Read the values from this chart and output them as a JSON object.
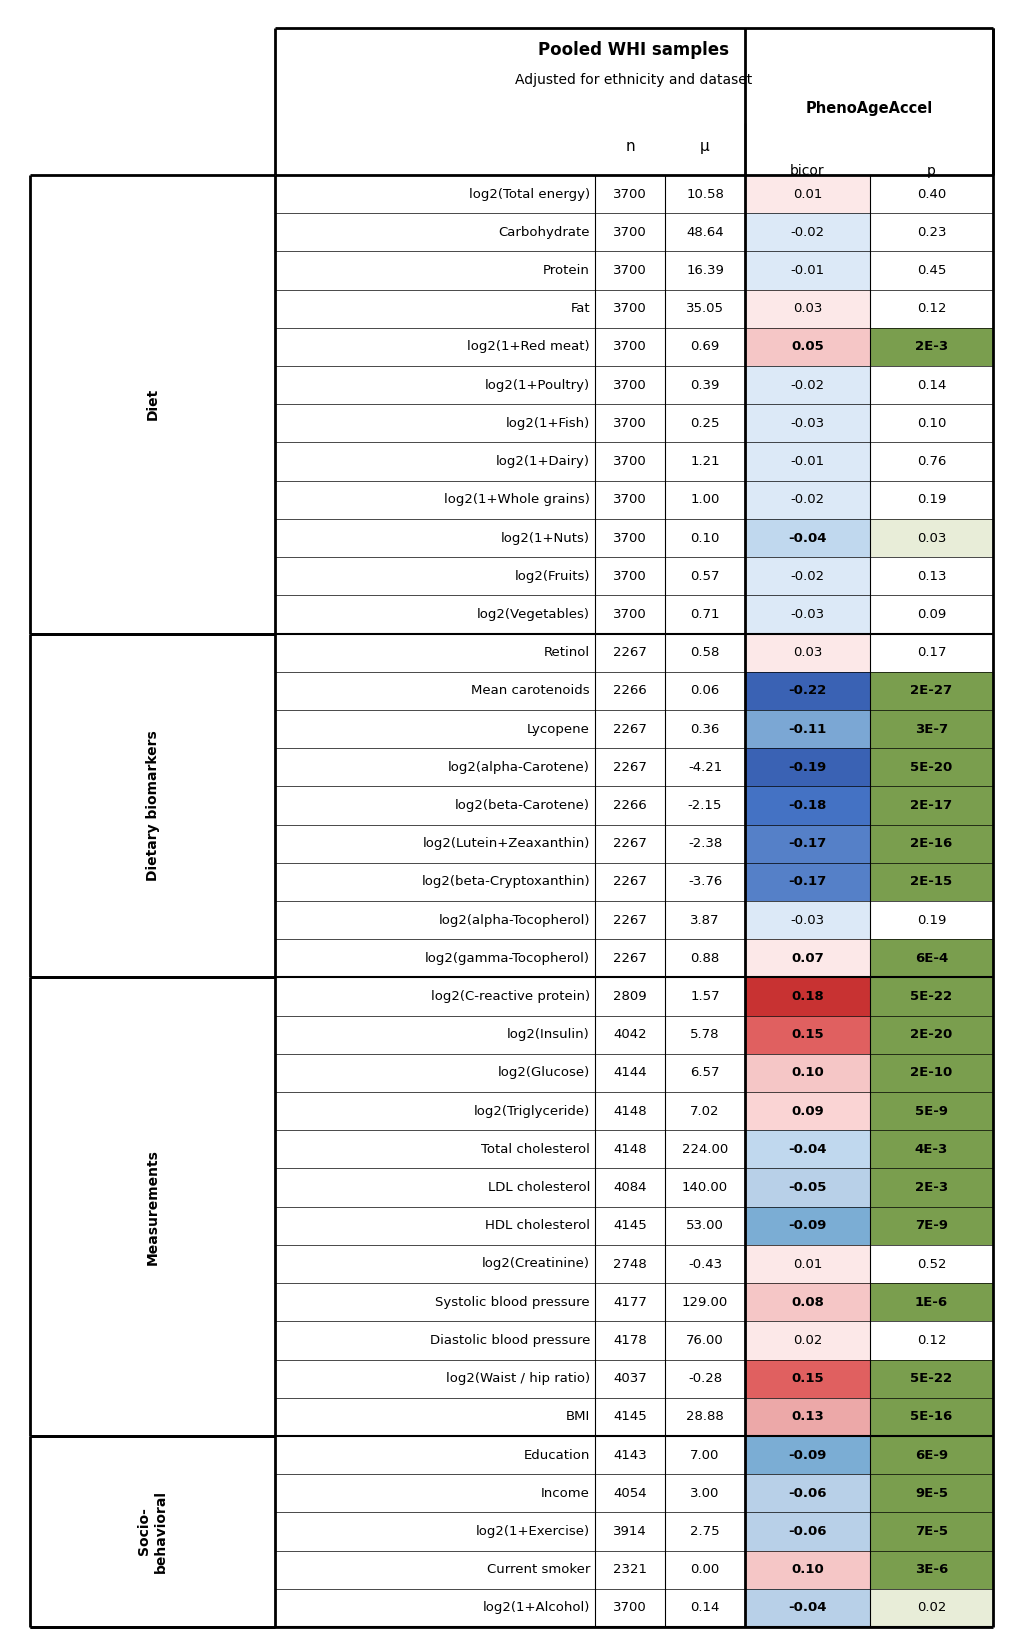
{
  "sections": [
    {
      "label": "Diet",
      "rows": [
        {
          "name": "log2(Total energy)",
          "n": "3700",
          "mu": "10.58",
          "bicor": "0.01",
          "p": "0.40",
          "bicor_color": "#fce8e8",
          "p_color": "#ffffff"
        },
        {
          "name": "Carbohydrate",
          "n": "3700",
          "mu": "48.64",
          "bicor": "-0.02",
          "p": "0.23",
          "bicor_color": "#dce9f7",
          "p_color": "#ffffff"
        },
        {
          "name": "Protein",
          "n": "3700",
          "mu": "16.39",
          "bicor": "-0.01",
          "p": "0.45",
          "bicor_color": "#dce9f7",
          "p_color": "#ffffff"
        },
        {
          "name": "Fat",
          "n": "3700",
          "mu": "35.05",
          "bicor": "0.03",
          "p": "0.12",
          "bicor_color": "#fce8e8",
          "p_color": "#ffffff"
        },
        {
          "name": "log2(1+Red meat)",
          "n": "3700",
          "mu": "0.69",
          "bicor": "0.05",
          "p": "2E-3",
          "bicor_color": "#f5c6c6",
          "p_color": "#7a9e4e"
        },
        {
          "name": "log2(1+Poultry)",
          "n": "3700",
          "mu": "0.39",
          "bicor": "-0.02",
          "p": "0.14",
          "bicor_color": "#dce9f7",
          "p_color": "#ffffff"
        },
        {
          "name": "log2(1+Fish)",
          "n": "3700",
          "mu": "0.25",
          "bicor": "-0.03",
          "p": "0.10",
          "bicor_color": "#dce9f7",
          "p_color": "#ffffff"
        },
        {
          "name": "log2(1+Dairy)",
          "n": "3700",
          "mu": "1.21",
          "bicor": "-0.01",
          "p": "0.76",
          "bicor_color": "#dce9f7",
          "p_color": "#ffffff"
        },
        {
          "name": "log2(1+Whole grains)",
          "n": "3700",
          "mu": "1.00",
          "bicor": "-0.02",
          "p": "0.19",
          "bicor_color": "#dce9f7",
          "p_color": "#ffffff"
        },
        {
          "name": "log2(1+Nuts)",
          "n": "3700",
          "mu": "0.10",
          "bicor": "-0.04",
          "p": "0.03",
          "bicor_color": "#c0d8ee",
          "p_color": "#e8edd8"
        },
        {
          "name": "log2(Fruits)",
          "n": "3700",
          "mu": "0.57",
          "bicor": "-0.02",
          "p": "0.13",
          "bicor_color": "#dce9f7",
          "p_color": "#ffffff"
        },
        {
          "name": "log2(Vegetables)",
          "n": "3700",
          "mu": "0.71",
          "bicor": "-0.03",
          "p": "0.09",
          "bicor_color": "#dce9f7",
          "p_color": "#ffffff"
        }
      ]
    },
    {
      "label": "Dietary biomarkers",
      "rows": [
        {
          "name": "Retinol",
          "n": "2267",
          "mu": "0.58",
          "bicor": "0.03",
          "p": "0.17",
          "bicor_color": "#fce8e8",
          "p_color": "#ffffff"
        },
        {
          "name": "Mean carotenoids",
          "n": "2266",
          "mu": "0.06",
          "bicor": "-0.22",
          "p": "2E-27",
          "bicor_color": "#3a62b4",
          "p_color": "#7a9e4e"
        },
        {
          "name": "Lycopene",
          "n": "2267",
          "mu": "0.36",
          "bicor": "-0.11",
          "p": "3E-7",
          "bicor_color": "#7ba7d4",
          "p_color": "#7a9e4e"
        },
        {
          "name": "log2(alpha-Carotene)",
          "n": "2267",
          "mu": "-4.21",
          "bicor": "-0.19",
          "p": "5E-20",
          "bicor_color": "#3a62b4",
          "p_color": "#7a9e4e"
        },
        {
          "name": "log2(beta-Carotene)",
          "n": "2266",
          "mu": "-2.15",
          "bicor": "-0.18",
          "p": "2E-17",
          "bicor_color": "#4472c4",
          "p_color": "#7a9e4e"
        },
        {
          "name": "log2(Lutein+Zeaxanthin)",
          "n": "2267",
          "mu": "-2.38",
          "bicor": "-0.17",
          "p": "2E-16",
          "bicor_color": "#5580c8",
          "p_color": "#7a9e4e"
        },
        {
          "name": "log2(beta-Cryptoxanthin)",
          "n": "2267",
          "mu": "-3.76",
          "bicor": "-0.17",
          "p": "2E-15",
          "bicor_color": "#5580c8",
          "p_color": "#7a9e4e"
        },
        {
          "name": "log2(alpha-Tocopherol)",
          "n": "2267",
          "mu": "3.87",
          "bicor": "-0.03",
          "p": "0.19",
          "bicor_color": "#dce9f7",
          "p_color": "#ffffff"
        },
        {
          "name": "log2(gamma-Tocopherol)",
          "n": "2267",
          "mu": "0.88",
          "bicor": "0.07",
          "p": "6E-4",
          "bicor_color": "#fce8e8",
          "p_color": "#7a9e4e"
        }
      ]
    },
    {
      "label": "Measurements",
      "rows": [
        {
          "name": "log2(C-reactive protein)",
          "n": "2809",
          "mu": "1.57",
          "bicor": "0.18",
          "p": "5E-22",
          "bicor_color": "#c83232",
          "p_color": "#7a9e4e"
        },
        {
          "name": "log2(Insulin)",
          "n": "4042",
          "mu": "5.78",
          "bicor": "0.15",
          "p": "2E-20",
          "bicor_color": "#e06060",
          "p_color": "#7a9e4e"
        },
        {
          "name": "log2(Glucose)",
          "n": "4144",
          "mu": "6.57",
          "bicor": "0.10",
          "p": "2E-10",
          "bicor_color": "#f5c6c6",
          "p_color": "#7a9e4e"
        },
        {
          "name": "log2(Triglyceride)",
          "n": "4148",
          "mu": "7.02",
          "bicor": "0.09",
          "p": "5E-9",
          "bicor_color": "#fad4d4",
          "p_color": "#7a9e4e"
        },
        {
          "name": "Total cholesterol",
          "n": "4148",
          "mu": "224.00",
          "bicor": "-0.04",
          "p": "4E-3",
          "bicor_color": "#c0d8ee",
          "p_color": "#7a9e4e"
        },
        {
          "name": "LDL cholesterol",
          "n": "4084",
          "mu": "140.00",
          "bicor": "-0.05",
          "p": "2E-3",
          "bicor_color": "#b8d0e8",
          "p_color": "#7a9e4e"
        },
        {
          "name": "HDL cholesterol",
          "n": "4145",
          "mu": "53.00",
          "bicor": "-0.09",
          "p": "7E-9",
          "bicor_color": "#7badd4",
          "p_color": "#7a9e4e"
        },
        {
          "name": "log2(Creatinine)",
          "n": "2748",
          "mu": "-0.43",
          "bicor": "0.01",
          "p": "0.52",
          "bicor_color": "#fce8e8",
          "p_color": "#ffffff"
        },
        {
          "name": "Systolic blood pressure",
          "n": "4177",
          "mu": "129.00",
          "bicor": "0.08",
          "p": "1E-6",
          "bicor_color": "#f5c6c6",
          "p_color": "#7a9e4e"
        },
        {
          "name": "Diastolic blood pressure",
          "n": "4178",
          "mu": "76.00",
          "bicor": "0.02",
          "p": "0.12",
          "bicor_color": "#fce8e8",
          "p_color": "#ffffff"
        },
        {
          "name": "log2(Waist / hip ratio)",
          "n": "4037",
          "mu": "-0.28",
          "bicor": "0.15",
          "p": "5E-22",
          "bicor_color": "#e06060",
          "p_color": "#7a9e4e"
        },
        {
          "name": "BMI",
          "n": "4145",
          "mu": "28.88",
          "bicor": "0.13",
          "p": "5E-16",
          "bicor_color": "#eca8a8",
          "p_color": "#7a9e4e"
        }
      ]
    },
    {
      "label": "Socio-\nbehavioral",
      "rows": [
        {
          "name": "Education",
          "n": "4143",
          "mu": "7.00",
          "bicor": "-0.09",
          "p": "6E-9",
          "bicor_color": "#7badd4",
          "p_color": "#7a9e4e"
        },
        {
          "name": "Income",
          "n": "4054",
          "mu": "3.00",
          "bicor": "-0.06",
          "p": "9E-5",
          "bicor_color": "#b8d0e8",
          "p_color": "#7a9e4e"
        },
        {
          "name": "log2(1+Exercise)",
          "n": "3914",
          "mu": "2.75",
          "bicor": "-0.06",
          "p": "7E-5",
          "bicor_color": "#b8d0e8",
          "p_color": "#7a9e4e"
        },
        {
          "name": "Current smoker",
          "n": "2321",
          "mu": "0.00",
          "bicor": "0.10",
          "p": "3E-6",
          "bicor_color": "#f5c6c6",
          "p_color": "#7a9e4e"
        },
        {
          "name": "log2(1+Alcohol)",
          "n": "3700",
          "mu": "0.14",
          "bicor": "-0.04",
          "p": "0.02",
          "bicor_color": "#b8d0e8",
          "p_color": "#e8edd8"
        }
      ]
    }
  ]
}
